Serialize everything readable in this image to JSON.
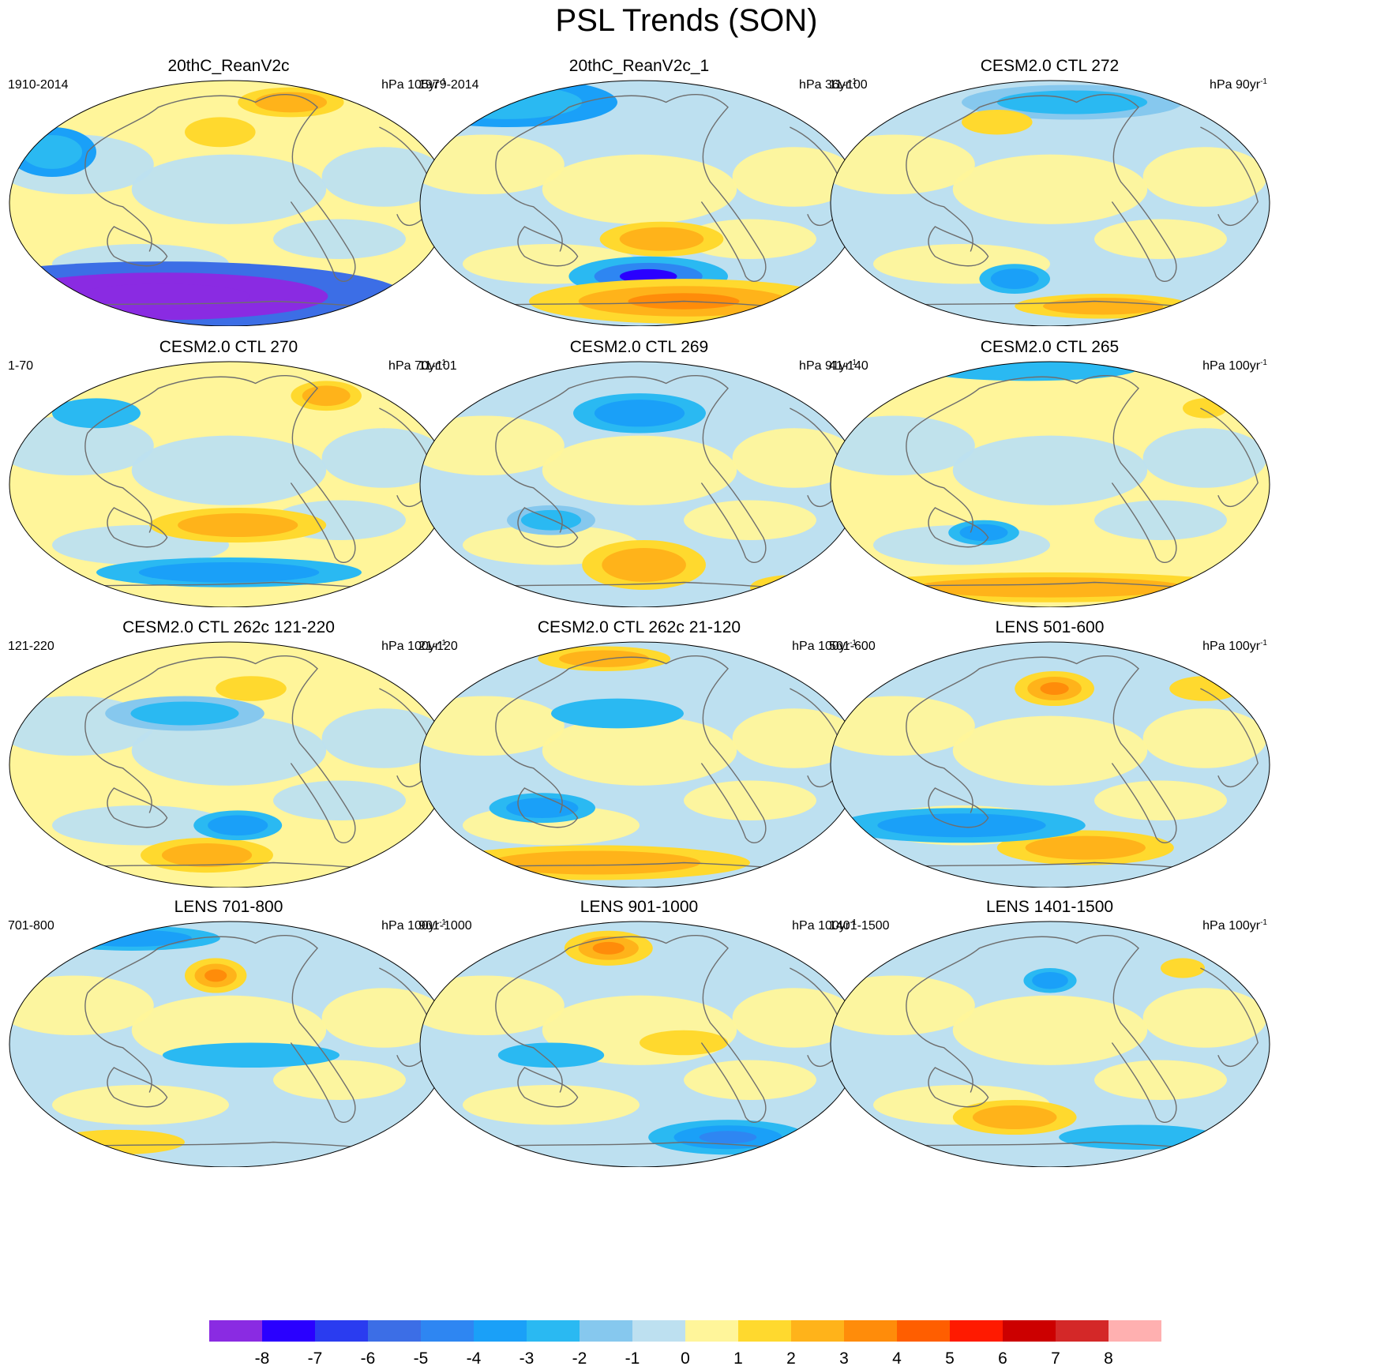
{
  "figure": {
    "title": "PSL Trends (SON)"
  },
  "panels": [
    {
      "title": "20thC_ReanV2c",
      "period": "1910-2014",
      "unit": "hPa",
      "span": "105yr",
      "exponent": "-1",
      "blobs": [
        [
          "c-5",
          "l-8",
          "x-8"
        ],
        [
          "c2",
          "c3"
        ],
        [
          "c-3",
          "c-2"
        ],
        [
          "c2"
        ]
      ]
    },
    {
      "title": "20thC_ReanV2c_1",
      "period": "1979-2014",
      "unit": "hPa",
      "span": "36yr",
      "exponent": "-1",
      "blobs": [
        [
          "c-2",
          "c-4",
          "c-7"
        ],
        [
          "c2",
          "c3",
          "c4"
        ],
        [
          "c-3",
          "c-2"
        ],
        [
          "c2",
          "c3"
        ]
      ]
    },
    {
      "title": "CESM2.0 CTL 272",
      "period": "11-100",
      "unit": "hPa",
      "span": "90yr",
      "exponent": "-1",
      "blobs": [
        [
          "c-2",
          "c-3"
        ],
        [
          "c2",
          "c3"
        ],
        [
          "c-1",
          "c-2"
        ],
        [
          "c2"
        ]
      ]
    },
    {
      "title": "CESM2.0 CTL 270",
      "period": "1-70",
      "unit": "hPa",
      "span": "70yr",
      "exponent": "-1",
      "blobs": [
        [
          "c-2",
          "c-3"
        ],
        [
          "c2",
          "c3"
        ],
        [
          "c-2"
        ],
        [
          "c2",
          "c3"
        ]
      ]
    },
    {
      "title": "CESM2.0 CTL 269",
      "period": "11-101",
      "unit": "hPa",
      "span": "91yr",
      "exponent": "-1",
      "blobs": [
        [
          "c2",
          "c3"
        ],
        [
          "c-2",
          "c-3"
        ],
        [
          "c-1",
          "c-2"
        ],
        [
          "c2"
        ]
      ]
    },
    {
      "title": "CESM2.0 CTL 265",
      "period": "41-140",
      "unit": "hPa",
      "span": "100yr",
      "exponent": "-1",
      "blobs": [
        [
          "c2",
          "c3"
        ],
        [
          "c-2",
          "c-3"
        ],
        [
          "c-2"
        ],
        [
          "c2"
        ]
      ]
    },
    {
      "title": "CESM2.0 CTL 262c 121-220",
      "period": "121-220",
      "unit": "hPa",
      "span": "100yr",
      "exponent": "-1",
      "blobs": [
        [
          "c2",
          "c3"
        ],
        [
          "c-2",
          "c-3"
        ],
        [
          "c-1",
          "c-2"
        ],
        [
          "c2"
        ]
      ]
    },
    {
      "title": "CESM2.0 CTL 262c 21-120",
      "period": "21-120",
      "unit": "hPa",
      "span": "100yr",
      "exponent": "-1",
      "blobs": [
        [
          "c2",
          "c3"
        ],
        [
          "c-2"
        ],
        [
          "c-2",
          "c-3"
        ],
        [
          "c2",
          "c3"
        ]
      ]
    },
    {
      "title": "LENS 501-600",
      "period": "501-600",
      "unit": "hPa",
      "span": "100yr",
      "exponent": "-1",
      "blobs": [
        [
          "c2",
          "c3"
        ],
        [
          "c2",
          "c3",
          "c4"
        ],
        [
          "c-2",
          "c-3"
        ],
        [
          "c2"
        ]
      ]
    },
    {
      "title": "LENS 701-800",
      "period": "701-800",
      "unit": "hPa",
      "span": "100yr",
      "exponent": "-1",
      "blobs": [
        [
          "c-2",
          "c-3"
        ],
        [
          "c2",
          "c3",
          "c4"
        ],
        [
          "c-2"
        ],
        [
          "c2"
        ]
      ]
    },
    {
      "title": "LENS 901-1000",
      "period": "901-1000",
      "unit": "hPa",
      "span": "100yr",
      "exponent": "-1",
      "blobs": [
        [
          "c-2",
          "c-3",
          "c-4"
        ],
        [
          "c2",
          "c3",
          "c4"
        ],
        [
          "c-2"
        ],
        [
          "c2"
        ]
      ]
    },
    {
      "title": "LENS 1401-1500",
      "period": "1401-1500",
      "unit": "hPa",
      "span": "100yr",
      "exponent": "-1",
      "blobs": [
        [
          "c2",
          "c3"
        ],
        [
          "c-2",
          "c-3"
        ],
        [
          "c-2"
        ],
        [
          "c2"
        ]
      ]
    }
  ],
  "colorbar": {
    "labels": [
      "-8",
      "-7",
      "-6",
      "-5",
      "-4",
      "-3",
      "-2",
      "-1",
      "0",
      "1",
      "2",
      "3",
      "4",
      "5",
      "6",
      "7",
      "8"
    ],
    "colors": [
      "#8a2be2",
      "#2a00ff",
      "#2a3cf0",
      "#3c6ee6",
      "#2e86f2",
      "#1aa0f8",
      "#2ab9f2",
      "#86c8ee",
      "#bde0f0",
      "#fff59a",
      "#ffd92e",
      "#ffb31a",
      "#ff8c0a",
      "#ff5e00",
      "#ff1a00",
      "#cc0000",
      "#d42828",
      "#ffb0b0"
    ]
  }
}
